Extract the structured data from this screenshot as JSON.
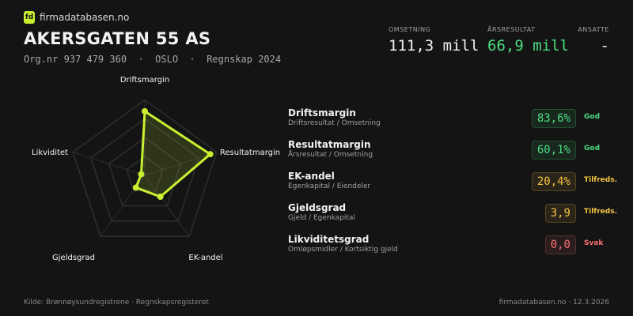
{
  "logo": "fd",
  "brand": "firmadatabasen.no",
  "header": {
    "title": "AKERSGATEN 55 AS",
    "subtitle": "Org.nr 937 479 360  ·  OSLO  ·  Regnskap 2024"
  },
  "stats": [
    {
      "label": "OMSETNING",
      "value": "111,3 mill",
      "color": "#f2f2f2"
    },
    {
      "label": "ÅRSRESULTAT",
      "value": "66,9 mill",
      "color": "#4ade80"
    },
    {
      "label": "ANSATTE",
      "value": "-",
      "color": "#f2f2f2"
    }
  ],
  "chart_data": {
    "type": "radar",
    "categories": [
      "Driftsmargin",
      "Resultatmargin",
      "EK-andel",
      "Gjeldsgrad",
      "Likviditet"
    ],
    "values": [
      85,
      91,
      35,
      20,
      5
    ],
    "rlim": [
      0,
      100
    ],
    "rticks": [
      25,
      50,
      75,
      100
    ],
    "color": "#c8f031"
  },
  "metrics": [
    {
      "name": "Driftsmargin",
      "formula": "Driftsresultat / Omsetning",
      "value": "83,6%",
      "rating": "God",
      "color": "#4ade80"
    },
    {
      "name": "Resultatmargin",
      "formula": "Årsresultat / Omsetning",
      "value": "60,1%",
      "rating": "God",
      "color": "#4ade80"
    },
    {
      "name": "EK-andel",
      "formula": "Egenkapital / Eiendeler",
      "value": "20,4%",
      "rating": "Tilfreds.",
      "color": "#f5c542"
    },
    {
      "name": "Gjeldsgrad",
      "formula": "Gjeld / Egenkapital",
      "value": "3,9",
      "rating": "Tilfreds.",
      "color": "#f5c542"
    },
    {
      "name": "Likviditetsgrad",
      "formula": "Omløpsmidler / Kortsiktig gjeld",
      "value": "0,0",
      "rating": "Svak",
      "color": "#f87171"
    }
  ],
  "footer": {
    "source": "Kilde: Brønnøysundregistrene · Regnskapsregisteret",
    "site": "firmadatabasen.no · 12.3.2026"
  }
}
